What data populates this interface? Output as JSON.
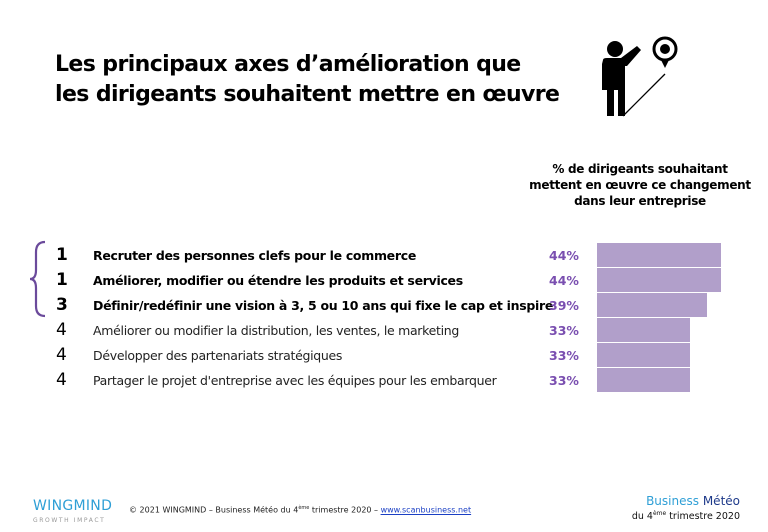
{
  "title_lines": [
    "Les principaux axes d’amélioration que",
    "les dirigeants souhaitent mettre en œuvre"
  ],
  "chart_data": {
    "type": "bar",
    "orientation": "horizontal",
    "title": "% de dirigeants souhaitant mettent en œuvre ce changement dans leur entreprise",
    "title_lines": [
      "% de dirigeants souhaitant",
      "mettent en œuvre ce changement",
      "dans leur entreprise"
    ],
    "ranks": [
      "1",
      "1",
      "3",
      "4",
      "4",
      "4"
    ],
    "categories": [
      "Recruter des personnes clefs pour le commerce",
      "Améliorer, modifier ou étendre les produits et services",
      "Définir/redéfinir une vision à 3, 5 ou 10 ans qui fixe le cap et inspire",
      "Améliorer ou modifier la distribution, les ventes, le marketing",
      "Développer des partenariats stratégiques",
      "Partager le projet d'entreprise avec les équipes pour les embarquer"
    ],
    "values": [
      44,
      44,
      39,
      33,
      33,
      33
    ],
    "value_labels": [
      "44%",
      "44%",
      "39%",
      "33%",
      "33%",
      "33%"
    ],
    "highlighted_top": 3,
    "bar_color": "#b19fca",
    "label_color": "#7a4fb0",
    "xlim": [
      0,
      100
    ]
  },
  "footer": {
    "logo": "WINGMIND",
    "logo_sub": "GROWTH IMPACT",
    "copyright_prefix": "© 2021  WINGMIND – Business Météo du 4",
    "copyright_sup": "ème",
    "copyright_mid": " trimestre 2020 – ",
    "link": "www.scanbusiness.net",
    "brand_a": "Business",
    "brand_b": "Météo",
    "brand_sub_prefix": "du 4",
    "brand_sub_sup": "ème",
    "brand_sub_suffix": " trimestre 2020"
  }
}
